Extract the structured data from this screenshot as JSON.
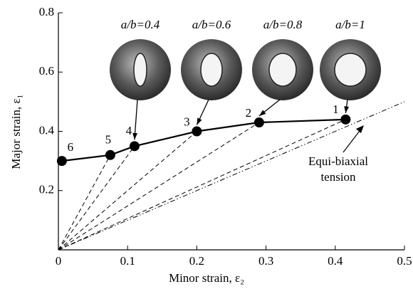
{
  "chart_data": {
    "type": "line",
    "x_label": "Minor strain, ε₂",
    "y_label": "Major strain, ε₁",
    "xlim": [
      0,
      0.5
    ],
    "ylim": [
      0,
      0.8
    ],
    "xticks": [
      0,
      0.1,
      0.2,
      0.3,
      0.4,
      0.5
    ],
    "yticks": [
      0.2,
      0.4,
      0.6,
      0.8
    ],
    "x": [
      0.005,
      0.075,
      0.11,
      0.2,
      0.29,
      0.415
    ],
    "series": [
      {
        "color": "#000000",
        "values": [
          0.3,
          0.32,
          0.35,
          0.4,
          0.43,
          0.44
        ]
      }
    ],
    "point_labels": [
      "6",
      "5",
      "4",
      "3",
      "2",
      "1"
    ],
    "specimen_labels": [
      "a/b=0.4",
      "a/b=0.6",
      "a/b=0.8",
      "a/b=1"
    ],
    "reference_label": [
      "Equi-biaxial",
      "tension"
    ]
  }
}
